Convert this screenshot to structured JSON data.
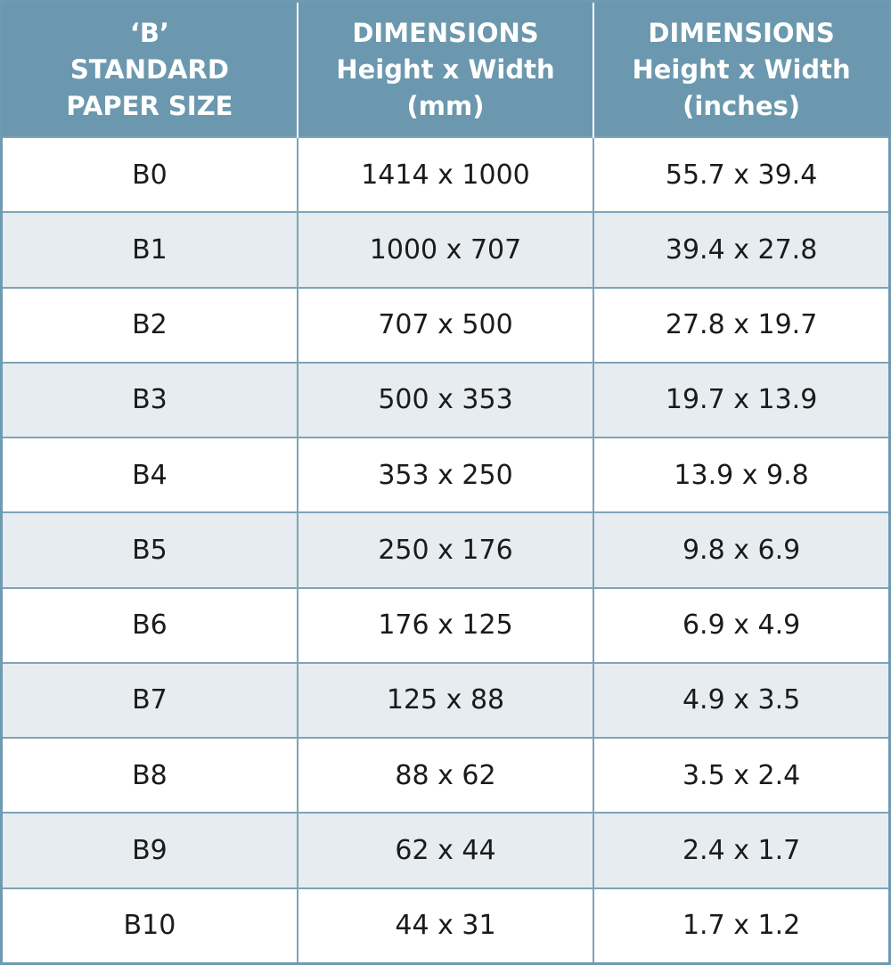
{
  "table": {
    "header": [
      [
        "‘B’",
        "STANDARD",
        "PAPER SIZE"
      ],
      [
        "DIMENSIONS",
        "Height x Width",
        "(mm)"
      ],
      [
        "DIMENSIONS",
        "Height x Width",
        "(inches)"
      ]
    ],
    "rows": [
      [
        "B0",
        "1414 x 1000",
        "55.7 x 39.4"
      ],
      [
        "B1",
        "1000 x 707",
        "39.4 x 27.8"
      ],
      [
        "B2",
        "707 x 500",
        "27.8 x 19.7"
      ],
      [
        "B3",
        "500 x 353",
        "19.7 x 13.9"
      ],
      [
        "B4",
        "353 x 250",
        "13.9 x 9.8"
      ],
      [
        "B5",
        "250 x 176",
        "9.8 x 6.9"
      ],
      [
        "B6",
        "176 x 125",
        "6.9 x 4.9"
      ],
      [
        "B7",
        "125 x 88",
        "4.9 x 3.5"
      ],
      [
        "B8",
        "88 x 62",
        "3.5 x 2.4"
      ],
      [
        "B9",
        "62 x 44",
        "2.4 x 1.7"
      ],
      [
        "B10",
        "44 x 31",
        "1.7 x 1.2"
      ]
    ]
  }
}
